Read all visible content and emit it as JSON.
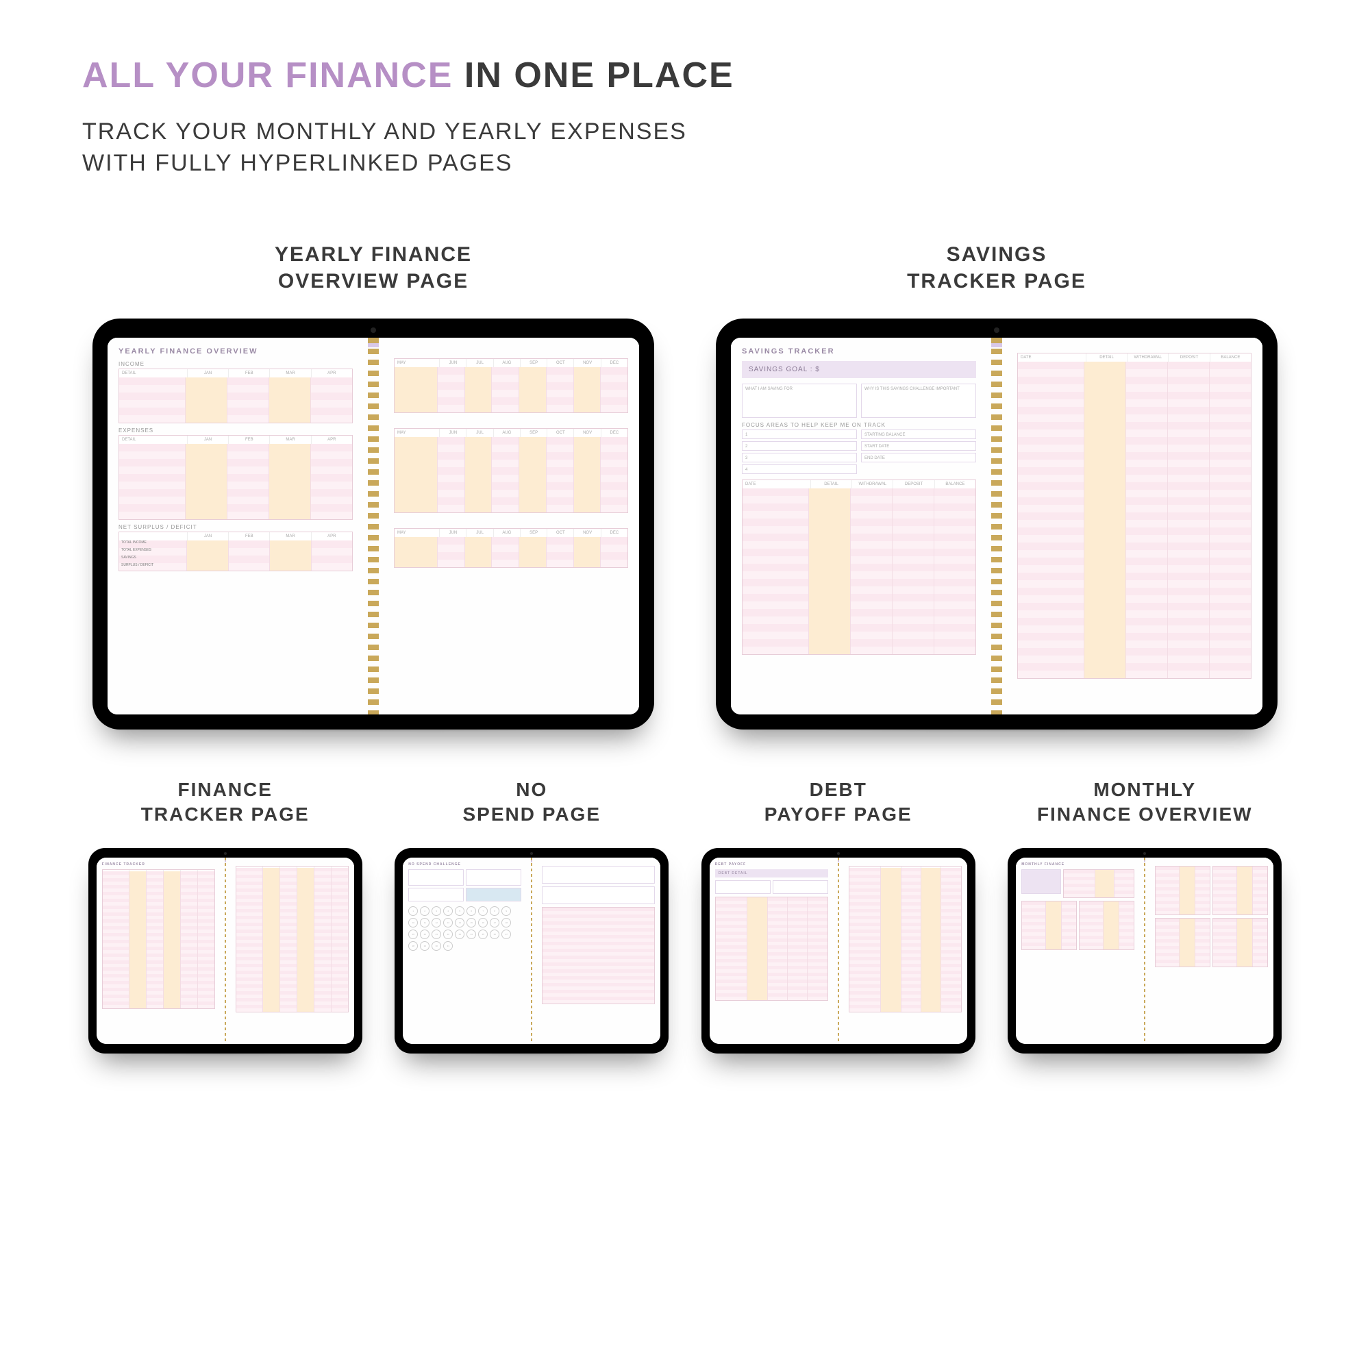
{
  "headline_accent": "ALL YOUR FINANCE",
  "headline_rest": "IN ONE PLACE",
  "subhead_l1": "TRACK YOUR MONTHLY AND YEARLY EXPENSES",
  "subhead_l2": "WITH FULLY HYPERLINKED PAGES",
  "top": [
    {
      "title_l1": "YEARLY FINANCE",
      "title_l2": "OVERVIEW PAGE"
    },
    {
      "title_l1": "SAVINGS",
      "title_l2": "TRACKER PAGE"
    }
  ],
  "bottom": [
    {
      "title_l1": "FINANCE",
      "title_l2": "TRACKER PAGE"
    },
    {
      "title_l1": "NO",
      "title_l2": "SPEND PAGE"
    },
    {
      "title_l1": "DEBT",
      "title_l2": "PAYOFF PAGE"
    },
    {
      "title_l1": "MONTHLY",
      "title_l2": "FINANCE OVERVIEW"
    }
  ],
  "yearly": {
    "title": "YEARLY FINANCE OVERVIEW",
    "income": "INCOME",
    "expenses": "EXPENSES",
    "net": "NET SURPLUS / DEFICIT",
    "months_a": [
      "DETAIL",
      "JAN",
      "FEB",
      "MAR",
      "APR"
    ],
    "months_b": [
      "MAY",
      "JUN",
      "JUL",
      "AUG",
      "SEP",
      "OCT",
      "NOV",
      "DEC"
    ],
    "summary_rows": [
      "TOTAL INCOME",
      "TOTAL EXPENSES",
      "SAVINGS",
      "SURPLUS / DEFICIT"
    ]
  },
  "savings": {
    "title": "SAVINGS TRACKER",
    "goal": "SAVINGS GOAL : $",
    "q1": "WHAT I AM SAVING FOR",
    "q2": "WHY IS THIS SAVINGS CHALLENGE IMPORTANT",
    "focus": "FOCUS AREAS TO HELP KEEP ME ON TRACK",
    "fields": [
      "STARTING BALANCE",
      "START DATE",
      "END DATE"
    ],
    "cols": [
      "DATE",
      "DETAIL",
      "WITHDRAWAL",
      "DEPOSIT",
      "BALANCE"
    ]
  },
  "finance_tracker": {
    "title": "FINANCE TRACKER"
  },
  "nospend": {
    "title": "NO SPEND CHALLENGE"
  },
  "debt": {
    "title": "DEBT PAYOFF",
    "sub": "DEBT DETAIL"
  },
  "monthly": {
    "title": "MONTHLY FINANCE"
  },
  "tab_colors": [
    "#d8c8e8",
    "#c8b3dd",
    "#f7cfe0",
    "#f7e3b8",
    "#f7d2a8",
    "#c8e6c8"
  ],
  "side_colors": [
    "#f8c8d8",
    "#f8dac0",
    "#f8eec0",
    "#d0eec8",
    "#c0e0e8",
    "#c8c8ee",
    "#e0c8ee"
  ]
}
